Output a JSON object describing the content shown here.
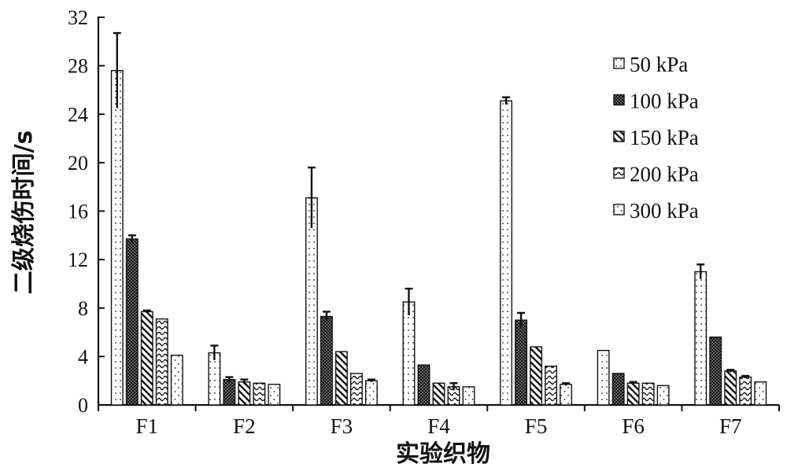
{
  "chart_data": {
    "type": "bar",
    "title": "",
    "xlabel": "实验织物",
    "ylabel": "二级烧伤时间/s",
    "ylim": [
      0,
      32
    ],
    "yticks": [
      0,
      4,
      8,
      12,
      16,
      20,
      24,
      28,
      32
    ],
    "categories": [
      "F1",
      "F2",
      "F3",
      "F4",
      "F5",
      "F6",
      "F7"
    ],
    "legend_position": "top-right",
    "series": [
      {
        "name": "50 kPa",
        "pattern": "dots",
        "values": [
          27.6,
          4.3,
          17.1,
          8.5,
          25.1,
          4.5,
          11.0
        ],
        "errors": [
          3.1,
          0.6,
          2.5,
          1.1,
          0.3,
          0.0,
          0.6
        ]
      },
      {
        "name": "100 kPa",
        "pattern": "dense-grid",
        "values": [
          13.7,
          2.1,
          7.3,
          3.3,
          7.0,
          2.6,
          5.6
        ],
        "errors": [
          0.3,
          0.2,
          0.4,
          0.0,
          0.6,
          0.0,
          0.0
        ]
      },
      {
        "name": "150 kPa",
        "pattern": "diag-stripes",
        "values": [
          7.7,
          1.9,
          4.4,
          1.8,
          4.8,
          1.8,
          2.8
        ],
        "errors": [
          0.1,
          0.2,
          0.0,
          0.0,
          0.0,
          0.1,
          0.1
        ]
      },
      {
        "name": "200 kPa",
        "pattern": "waves",
        "values": [
          7.1,
          1.8,
          2.6,
          1.5,
          3.2,
          1.8,
          2.3
        ],
        "errors": [
          0.0,
          0.0,
          0.0,
          0.3,
          0.0,
          0.0,
          0.1
        ]
      },
      {
        "name": "300 kPa",
        "pattern": "sparse-dots",
        "values": [
          4.1,
          1.7,
          2.0,
          1.5,
          1.7,
          1.6,
          1.9
        ],
        "errors": [
          0.0,
          0.0,
          0.1,
          0.0,
          0.1,
          0.0,
          0.0
        ]
      }
    ]
  }
}
